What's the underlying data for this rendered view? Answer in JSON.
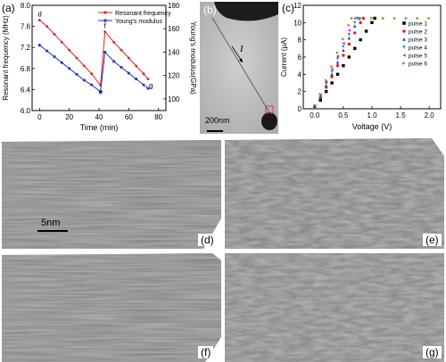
{
  "panels": {
    "a": {
      "label": "(a)"
    },
    "b": {
      "label": "(b)",
      "scale_bar": "200nm",
      "arrow_label": "I"
    },
    "c": {
      "label": "(c)"
    },
    "d": {
      "label": "(d)",
      "scale_bar": "5nm"
    },
    "e": {
      "label": "(e)"
    },
    "f": {
      "label": "(f)"
    },
    "g": {
      "label": "(g)"
    }
  },
  "chart_data": [
    {
      "type": "line",
      "panel": "a",
      "xlabel": "Time (min)",
      "ylabel": "Resonant frequency (MHz)",
      "y2label": "Young's modulus(GPa)",
      "xlim": [
        -5,
        85
      ],
      "ylim": [
        6.0,
        8.0
      ],
      "y2lim": [
        90,
        180
      ],
      "xticks": [
        "0",
        "20",
        "40",
        "60",
        "80"
      ],
      "yticks": [
        "6.0",
        "6.4",
        "6.8",
        "7.2",
        "7.6",
        "8.0"
      ],
      "y2ticks": [
        "100",
        "120",
        "140",
        "160",
        "180"
      ],
      "point_labels": [
        "d",
        "e",
        "f",
        "g"
      ],
      "series": [
        {
          "name": "Resonant frequency",
          "color": "#e02020",
          "marker": "circle",
          "x": [
            0,
            5,
            10,
            15,
            20,
            25,
            30,
            35,
            41,
            44,
            50,
            55,
            60,
            65,
            70,
            73
          ],
          "y": [
            7.72,
            7.6,
            7.45,
            7.3,
            7.15,
            7.0,
            6.85,
            6.7,
            6.48,
            7.5,
            7.3,
            7.15,
            7.0,
            6.85,
            6.7,
            6.6
          ]
        },
        {
          "name": "Young's modulus",
          "color": "#2030c0",
          "marker": "square",
          "axis": "right",
          "x": [
            0,
            5,
            10,
            15,
            20,
            25,
            30,
            35,
            41,
            44,
            50,
            55,
            60,
            65,
            70,
            73
          ],
          "y": [
            146,
            141,
            136,
            131,
            126,
            121,
            116,
            112,
            106,
            140,
            132,
            127,
            122,
            117,
            112,
            109
          ]
        }
      ]
    },
    {
      "type": "line",
      "panel": "c",
      "xlabel": "Voltage (V)",
      "ylabel": "Current (μA)",
      "xlim": [
        -0.2,
        2.2
      ],
      "ylim": [
        0,
        12
      ],
      "xticks": [
        "0.0",
        "0.5",
        "1.0",
        "1.5",
        "2.0"
      ],
      "yticks": [
        "0",
        "2",
        "4",
        "6",
        "8",
        "10",
        "12"
      ],
      "series": [
        {
          "name": "pulse 1",
          "color": "#000000",
          "marker": "square",
          "x": [
            0.0,
            0.1,
            0.2,
            0.3,
            0.4,
            0.5,
            0.6,
            0.7,
            0.8,
            0.9,
            1.0,
            1.05
          ],
          "y": [
            0.3,
            1.0,
            2.0,
            3.0,
            4.0,
            5.0,
            6.0,
            7.0,
            8.0,
            9.0,
            10.0,
            10.5
          ]
        },
        {
          "name": "pulse 2",
          "color": "#e02020",
          "marker": "circle",
          "x": [
            0.0,
            0.1,
            0.2,
            0.3,
            0.4,
            0.5,
            0.6,
            0.7,
            0.8,
            0.85
          ],
          "y": [
            0.3,
            1.3,
            2.5,
            3.7,
            5.0,
            6.2,
            7.5,
            8.8,
            10.0,
            10.5
          ]
        },
        {
          "name": "pulse 3",
          "color": "#2030c0",
          "marker": "triangle",
          "x": [
            0.0,
            0.1,
            0.2,
            0.3,
            0.4,
            0.5,
            0.6,
            0.7,
            0.78
          ],
          "y": [
            0.3,
            1.4,
            2.7,
            4.0,
            5.4,
            6.8,
            8.2,
            9.6,
            10.5
          ]
        },
        {
          "name": "pulse 4",
          "color": "#00a0a0",
          "marker": "triangle-down",
          "x": [
            0.0,
            0.1,
            0.2,
            0.3,
            0.4,
            0.5,
            0.6,
            0.7,
            0.75
          ],
          "y": [
            0.3,
            1.5,
            2.9,
            4.3,
            5.8,
            7.2,
            8.6,
            10.0,
            10.5
          ]
        },
        {
          "name": "pulse 5",
          "color": "#d020d0",
          "marker": "triangle-left",
          "x": [
            0.0,
            0.1,
            0.2,
            0.3,
            0.4,
            0.5,
            0.6,
            0.7
          ],
          "y": [
            0.3,
            1.6,
            3.1,
            4.6,
            6.1,
            7.6,
            9.1,
            10.5
          ]
        },
        {
          "name": "pulse 6",
          "color": "#909020",
          "marker": "triangle-right",
          "x": [
            0.0,
            0.1,
            0.2,
            0.3,
            0.4,
            0.5,
            0.6,
            0.65,
            0.8,
            1.0,
            1.2,
            1.4,
            1.6,
            1.8,
            2.0
          ],
          "y": [
            0.3,
            1.7,
            3.3,
            4.9,
            6.5,
            8.1,
            9.7,
            10.5,
            10.5,
            10.5,
            10.5,
            10.5,
            10.5,
            10.5,
            10.5
          ]
        }
      ]
    }
  ]
}
